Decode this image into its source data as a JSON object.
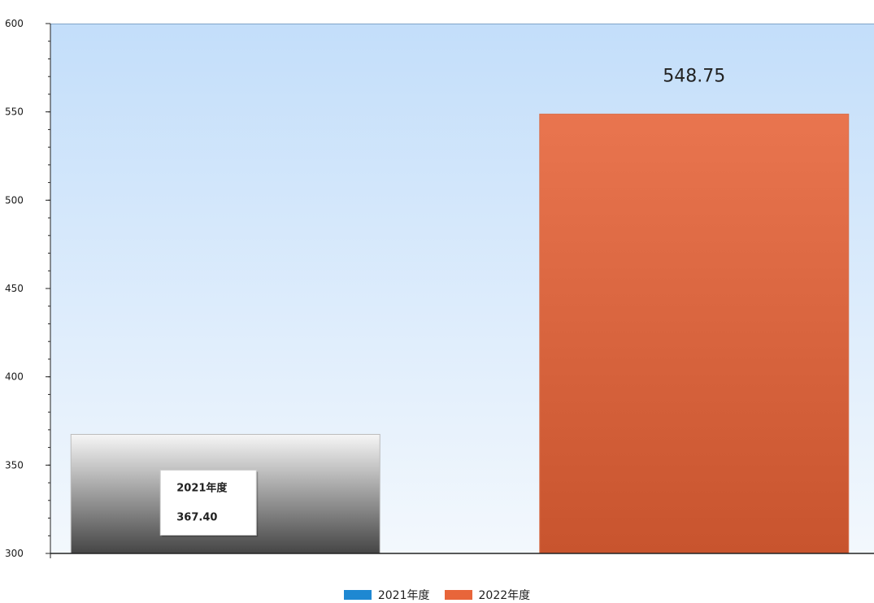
{
  "chart_data": {
    "type": "bar",
    "categories": [
      "2021年度",
      "2022年度"
    ],
    "values": [
      367.4,
      548.75
    ],
    "value_labels": [
      "367.40",
      "548.75"
    ],
    "series": [
      {
        "name": "2021年度",
        "values": [
          367.4,
          null
        ],
        "color": "#1e88d2"
      },
      {
        "name": "2022年度",
        "values": [
          null,
          548.75
        ],
        "color": "#e8653a"
      }
    ],
    "ylim": [
      300,
      600
    ],
    "yticks": [
      "300",
      "350",
      "400",
      "450",
      "500",
      "550",
      "600"
    ],
    "grid": false,
    "legend_position": "bottom",
    "tooltip": {
      "title": "2021年度",
      "value": "367.40"
    },
    "colors": {
      "bar_2021_top": "#f6f6f6",
      "bar_2021_bottom": "#454545",
      "bar_2022_top": "#e9754f",
      "bar_2022_bottom": "#c8542e",
      "plot_bg_top": "#c3defa",
      "plot_bg_bottom": "#f3f8fd"
    }
  }
}
